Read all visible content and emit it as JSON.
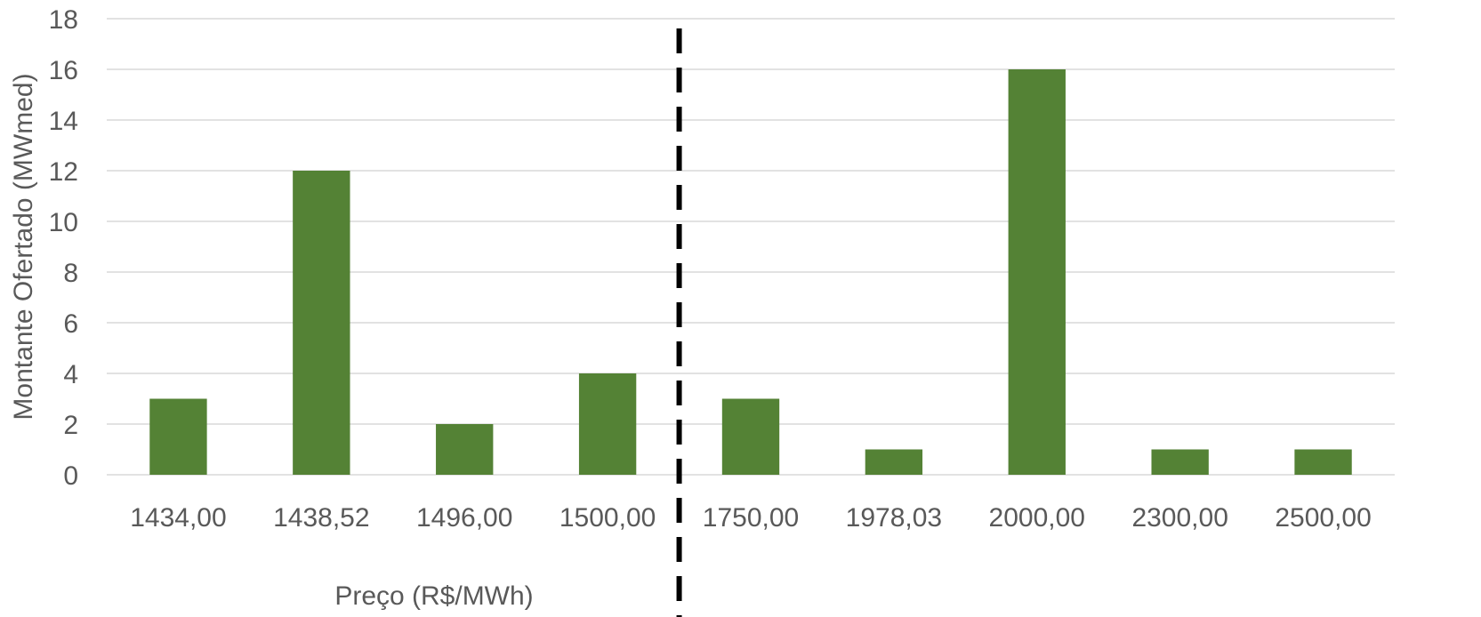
{
  "chart_data": {
    "type": "bar",
    "categories": [
      "1434,00",
      "1438,52",
      "1496,00",
      "1500,00",
      "1750,00",
      "1978,03",
      "2000,00",
      "2300,00",
      "2500,00"
    ],
    "values": [
      3,
      12,
      2,
      4,
      3,
      1,
      16,
      1,
      1
    ],
    "xlabel": "Preço (R$/MWh)",
    "ylabel": "Montante Ofertado (MWmed)",
    "ylim": [
      0,
      18
    ],
    "yticks": [
      0,
      2,
      4,
      6,
      8,
      10,
      12,
      14,
      16,
      18
    ],
    "grid": true,
    "bar_color": "#548235",
    "divider": {
      "style": "dashed",
      "color": "#000000",
      "between": [
        "1500,00",
        "1750,00"
      ]
    }
  }
}
